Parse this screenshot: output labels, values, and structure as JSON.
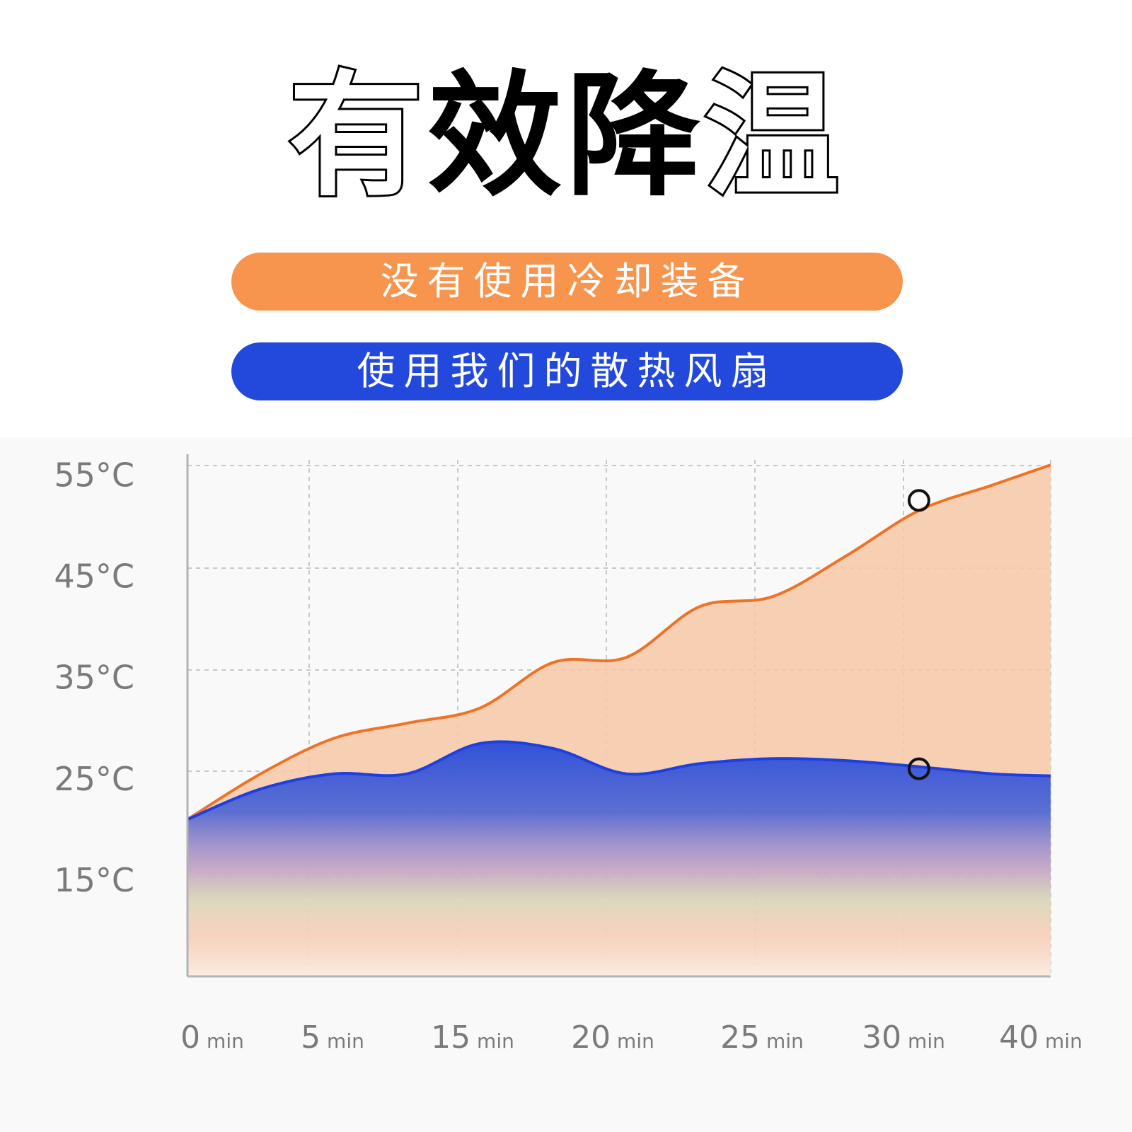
{
  "title": {
    "chars": [
      {
        "text": "有",
        "style": "outline"
      },
      {
        "text": "效",
        "style": "solid"
      },
      {
        "text": "降",
        "style": "solid"
      },
      {
        "text": "温",
        "style": "outline"
      }
    ]
  },
  "legend": {
    "no_cooling_label": "没有使用冷却装备",
    "fan_label": "使用我们的散热风扇"
  },
  "colors": {
    "orange": "#f7944e",
    "orange_line": "#ee7326",
    "orange_fill": "#f7c9a8",
    "blue": "#2249db",
    "blue_line": "#1e3fe0",
    "grid": "#c8c8c8",
    "axis": "#b3b3b3",
    "tick_text": "#7a7a7a"
  },
  "chart_data": {
    "type": "area",
    "x_tick_labels": [
      {
        "value": "0",
        "unit": "min"
      },
      {
        "value": "5",
        "unit": "min"
      },
      {
        "value": "15",
        "unit": "min"
      },
      {
        "value": "20",
        "unit": "min"
      },
      {
        "value": "25",
        "unit": "min"
      },
      {
        "value": "30",
        "unit": "min"
      },
      {
        "value": "40",
        "unit": "min"
      }
    ],
    "y_tick_labels": [
      "55°C",
      "45°C",
      "35°C",
      "25°C",
      "15°C"
    ],
    "y_ticks": [
      55,
      45,
      35,
      25,
      15
    ],
    "ylim": [
      5.5,
      56.5
    ],
    "grid": true,
    "series": [
      {
        "key": "no_cooling",
        "x": [
          0,
          0.5,
          1,
          1.5,
          2,
          2.5,
          3,
          3.5,
          4,
          4.5,
          5,
          5.5,
          5.9
        ],
        "y": [
          21,
          25.5,
          29,
          30.5,
          32,
          36.5,
          37,
          42,
          43,
          47,
          51.5,
          54,
          56
        ]
      },
      {
        "key": "fan",
        "x": [
          0,
          0.5,
          1,
          1.5,
          2,
          2.5,
          3,
          3.5,
          4,
          4.5,
          5,
          5.5,
          5.9
        ],
        "y": [
          21,
          24,
          25.5,
          25.5,
          28.5,
          28,
          25.5,
          26.5,
          27,
          26.8,
          26.2,
          25.5,
          25.3
        ]
      }
    ],
    "markers": [
      {
        "x": 5,
        "y": 52.5
      },
      {
        "x": 5,
        "y": 26
      }
    ]
  }
}
